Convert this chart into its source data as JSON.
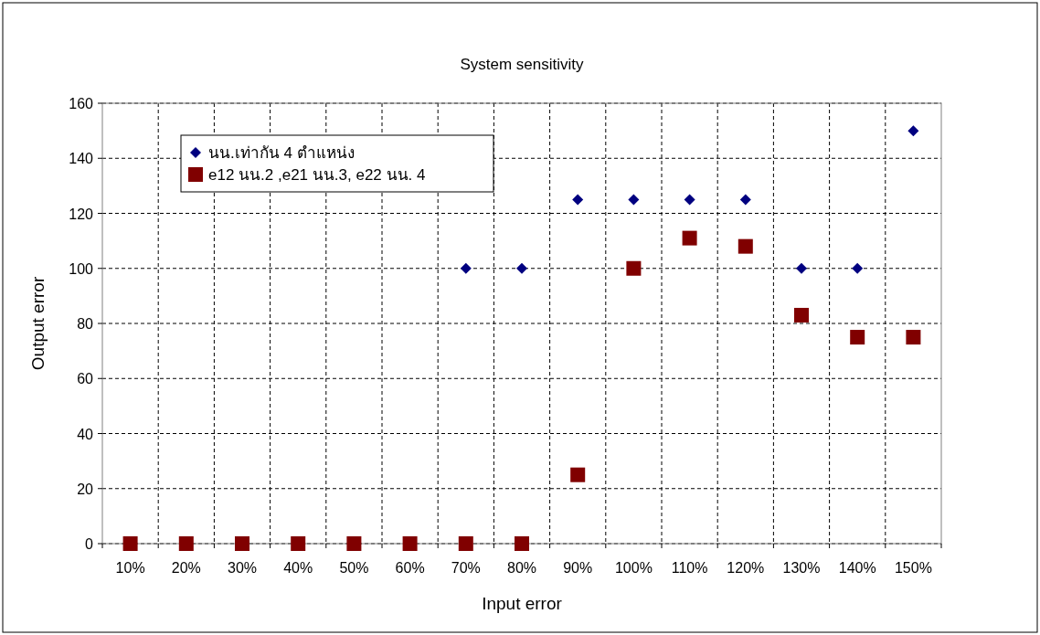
{
  "chart_data": {
    "type": "scatter",
    "title": "System sensitivity",
    "xlabel": "Input error",
    "ylabel": "Output error",
    "categories": [
      "10%",
      "20%",
      "30%",
      "40%",
      "50%",
      "60%",
      "70%",
      "80%",
      "90%",
      "100%",
      "110%",
      "120%",
      "130%",
      "140%",
      "150%"
    ],
    "series": [
      {
        "name": "นน.เท่ากัน 4 ตำแหน่ง",
        "color": "#000080",
        "marker": "diamond",
        "values": [
          null,
          null,
          null,
          null,
          null,
          null,
          100,
          100,
          125,
          125,
          125,
          125,
          100,
          100,
          150
        ]
      },
      {
        "name": "e12 นน.2 ,e21 นน.3, e22 นน. 4",
        "color": "#800000",
        "marker": "square",
        "values": [
          0,
          0,
          0,
          0,
          0,
          0,
          0,
          0,
          25,
          100,
          111,
          108,
          83,
          75,
          75
        ]
      }
    ],
    "ylim": [
      0,
      160
    ],
    "yticks": [
      0,
      20,
      40,
      60,
      80,
      100,
      120,
      140,
      160
    ],
    "grid": true,
    "legend": "top left"
  }
}
